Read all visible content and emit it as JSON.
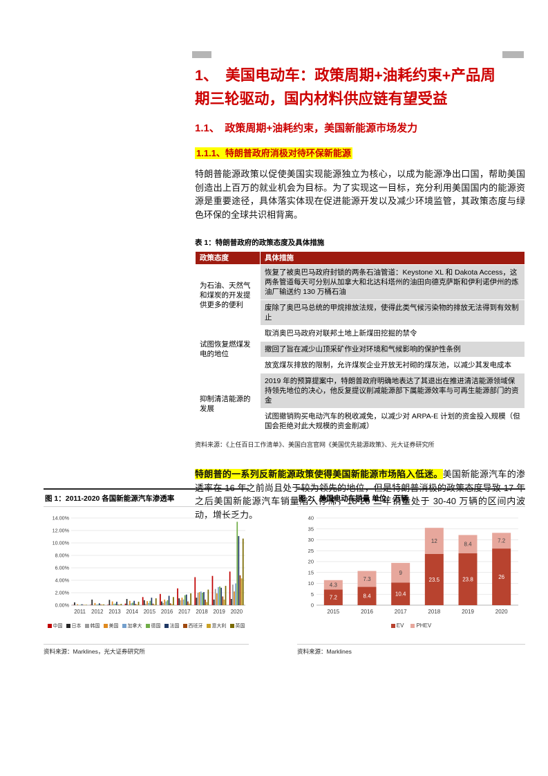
{
  "title": "1、　美国电动车：政策周期+油耗约束+产品周期三轮驱动，国内材料供应链有望受益",
  "section_1_1": "1.1、　政策周期+油耗约束，美国新能源市场发力",
  "section_1_1_1": "1.1.1、特朗普政府消极对待环保新能源",
  "para1": "特朗普能源政策以促使美国实现能源独立为核心，以成为能源净出口国，帮助美国创造出上百万的就业机会为目标。为了实现这一目标，充分利用美国国内的能源资源是重要途径，具体落实体现在促进能源开发以及减少环境监管，其政策态度与绿色环保的全球共识相背离。",
  "table": {
    "caption": "表 1：特朗普政府的政策态度及具体措施",
    "col1": "政策态度",
    "col2": "具体措施",
    "groups": [
      {
        "attitude": "为石油、天然气和煤炭的开发提供更多的便利",
        "measures": [
          {
            "text": "恢复了被奥巴马政府封锁的两条石油管道：Keystone XL 和 Dakota Access，这两条管道每天可分别从加拿大和北达科塔州的油田向德克萨斯和伊利诺伊州的炼油厂输送约 130 万桶石油",
            "shaded": true
          },
          {
            "text": "废除了奥巴马总统的甲烷排放法规，使得此类气候污染物的排放无法得到有效制止",
            "shaded": true
          }
        ]
      },
      {
        "attitude": "试图恢复燃煤发电的地位",
        "measures": [
          {
            "text": "取消奥巴马政府对联邦土地上新煤田挖掘的禁令",
            "shaded": false
          },
          {
            "text": "撤回了旨在减少山顶采矿作业对环境和气候影响的保护性条例",
            "shaded": true
          },
          {
            "text": "放宽煤灰排放的限制，允许煤炭企业开放无衬砌的煤灰池，以减少其发电成本",
            "shaded": false
          }
        ]
      },
      {
        "attitude": "抑制清洁能源的发展",
        "measures": [
          {
            "text": "2019 年的预算提案中，特朗普政府明确地表达了其退出在推进清洁能源领域保持领先地位的决心，他反复提议削减能源部下属能源效率与可再生能源部门的资金",
            "shaded": true
          },
          {
            "text": "试图撤销购买电动汽车的税收减免，以减少对 ARPA-E 计划的资金投入规模（但国会拒绝对此大规模的资金削减）",
            "shaded": false
          }
        ]
      }
    ],
    "source": "资料来源：《上任百日工作清单》、美国白宫官网《美国优先能源政策》、光大证券研究所"
  },
  "para2_bold": "特朗普的一系列反新能源政策使得美国新能源市场陷入低迷。",
  "para2_rest": "美国新能源汽车的渗透率在 16 年之前尚且处于较为领先的地位，但是特朗普消极的政策态度导致 17 年之后美国新能源汽车销量陷入停滞，18-20 三年销量处于 30-40 万辆的区间内波动，增长乏力。",
  "figure1": {
    "caption": "图 1：2011-2020 各国新能源汽车渗透率",
    "source": "资料来源：Marklines，光大证券研究所"
  },
  "figure2": {
    "caption": "图 2：美国电动车销量 单位：万辆",
    "source": "资料来源：Marklines"
  },
  "colors": {
    "heading_red": "#cc0000",
    "table_header_bg": "#9e1b10",
    "row_shade": "#d9d9d9",
    "highlight": "#ffff00"
  },
  "chart_data": [
    {
      "type": "bar",
      "title": "2011-2020 各国新能源汽车渗透率",
      "x": [
        "2011",
        "2012",
        "2013",
        "2014",
        "2015",
        "2016",
        "2017",
        "2018",
        "2019",
        "2020"
      ],
      "ylabel": "渗透率",
      "ylim": [
        0,
        14
      ],
      "ytick_step": 2,
      "ytick_format": "percent",
      "grid": true,
      "legend_position": "bottom",
      "series": [
        {
          "key": "china",
          "name": "中国",
          "color": "#c00000",
          "values": [
            0.04,
            0.06,
            0.08,
            0.25,
            1.3,
            1.8,
            2.7,
            4.5,
            4.7,
            5.4
          ]
        },
        {
          "key": "japan",
          "name": "日本",
          "color": "#262626",
          "values": [
            0.45,
            0.9,
            0.85,
            1.0,
            0.8,
            0.6,
            1.1,
            1.2,
            0.9,
            1.0
          ]
        },
        {
          "key": "korea",
          "name": "韩国",
          "color": "#9b9b9b",
          "values": [
            0.02,
            0.05,
            0.08,
            0.1,
            0.2,
            0.35,
            0.8,
            2.0,
            2.6,
            3.3
          ]
        },
        {
          "key": "usa",
          "name": "美国",
          "color": "#e08a1e",
          "values": [
            0.15,
            0.35,
            0.6,
            0.7,
            0.65,
            0.9,
            1.2,
            2.1,
            1.9,
            2.2
          ]
        },
        {
          "key": "canada",
          "name": "加拿大",
          "color": "#74a0cd",
          "values": [
            0.03,
            0.1,
            0.2,
            0.3,
            0.35,
            0.6,
            0.9,
            2.2,
            2.9,
            3.5
          ]
        },
        {
          "key": "germany",
          "name": "德国",
          "color": "#70ad47",
          "values": [
            0.05,
            0.1,
            0.25,
            0.4,
            0.7,
            0.8,
            1.6,
            2.0,
            3.0,
            13.4
          ]
        },
        {
          "key": "france",
          "name": "法国",
          "color": "#1f3864",
          "values": [
            0.15,
            0.3,
            0.55,
            0.7,
            1.2,
            1.5,
            1.7,
            2.1,
            2.8,
            11.1
          ]
        },
        {
          "key": "spain",
          "name": "西班牙",
          "color": "#9e480e",
          "values": [
            0.05,
            0.1,
            0.1,
            0.2,
            0.25,
            0.3,
            0.6,
            0.9,
            1.4,
            4.8
          ]
        },
        {
          "key": "italy",
          "name": "意大利",
          "color": "#c9a227",
          "values": [
            0.05,
            0.1,
            0.1,
            0.1,
            0.1,
            0.15,
            0.25,
            0.5,
            0.9,
            4.3
          ]
        },
        {
          "key": "uk",
          "name": "英国",
          "color": "#7a6a00",
          "values": [
            0.06,
            0.12,
            0.2,
            0.55,
            1.1,
            1.3,
            1.9,
            2.5,
            3.1,
            10.7
          ]
        }
      ]
    },
    {
      "type": "bar",
      "stacked": true,
      "title": "美国电动车销量",
      "unit": "万辆",
      "categories": [
        "2015",
        "2016",
        "2017",
        "2018",
        "2019",
        "2020"
      ],
      "ylim": [
        0,
        40
      ],
      "ytick_step": 5,
      "grid": true,
      "legend_position": "bottom",
      "series": [
        {
          "key": "ev",
          "name": "EV",
          "color": "#b8432f",
          "label_color": "#ffffff",
          "values": [
            7.2,
            8.4,
            10.4,
            23.5,
            23.8,
            26
          ]
        },
        {
          "key": "phev",
          "name": "PHEV",
          "color": "#e7a79c",
          "label_color": "#444444",
          "values": [
            4.3,
            7.3,
            9,
            12,
            8.4,
            7.2
          ]
        }
      ]
    }
  ]
}
